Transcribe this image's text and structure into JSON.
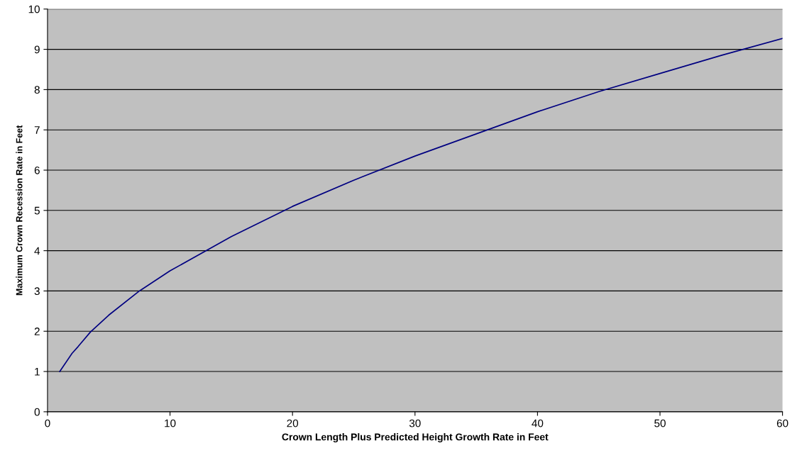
{
  "chart_data": {
    "type": "line",
    "xlabel": "Crown Length Plus Predicted Height Growth Rate in Feet",
    "ylabel": "Maximum Crown Recession Rate in Feet",
    "x": [
      1,
      2,
      2.5,
      3.5,
      5,
      7.5,
      10,
      15,
      20,
      25,
      30,
      35,
      40,
      45,
      50,
      55,
      60
    ],
    "series": [
      {
        "color": "#000080",
        "values": [
          1,
          1.45,
          1.62,
          1.98,
          2.4,
          3.0,
          3.5,
          4.35,
          5.1,
          5.75,
          6.35,
          6.9,
          7.45,
          7.95,
          8.4,
          8.85,
          9.27
        ]
      }
    ],
    "xlim": [
      0,
      60
    ],
    "xticks": [
      0,
      10,
      20,
      30,
      40,
      50,
      60
    ],
    "ylim": [
      0,
      10
    ],
    "yticks": [
      0,
      1,
      2,
      3,
      4,
      5,
      6,
      7,
      8,
      9,
      10
    ],
    "grid": "y",
    "marker": "none",
    "line_style": "solid"
  }
}
